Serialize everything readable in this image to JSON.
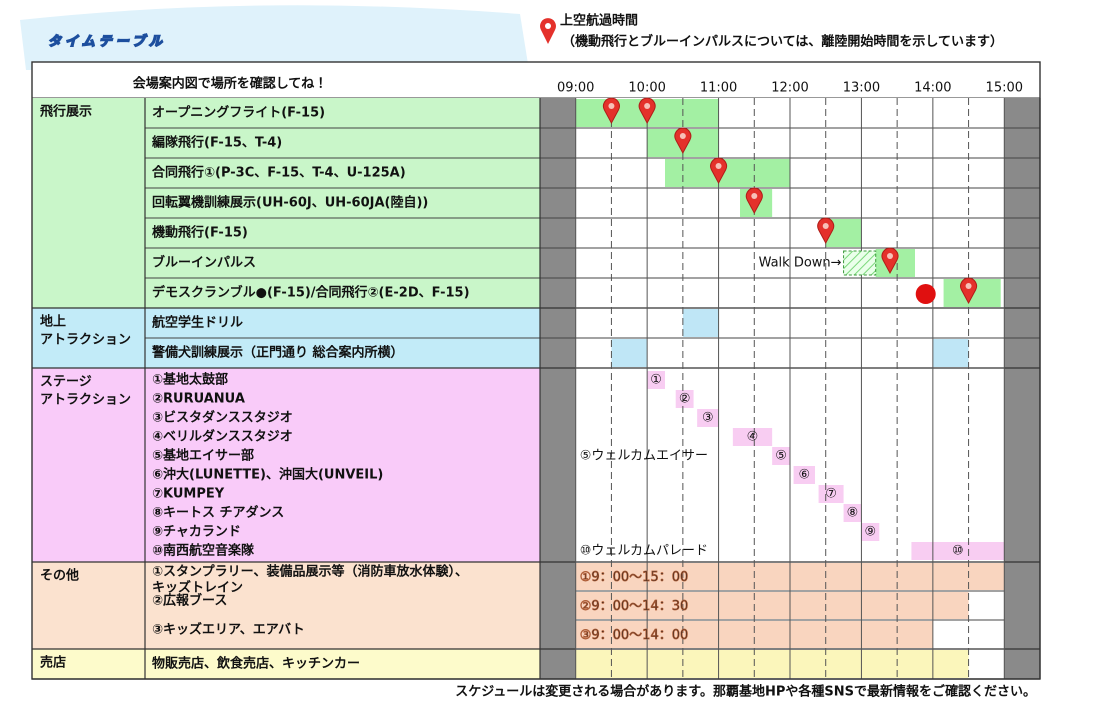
{
  "header": {
    "title": "タイムテーブル",
    "pin_legend": "上空航過時間",
    "pin_note": "（機動飛行とブルーインパルスについては、離陸開始時間を示しています）",
    "map_note": "会場案内図で場所を確認してね！"
  },
  "timeline": {
    "xlim": [
      8.5,
      15.5
    ],
    "ticks": [
      {
        "value": 9,
        "label": "09:00"
      },
      {
        "value": 10,
        "label": "10:00"
      },
      {
        "value": 11,
        "label": "11:00"
      },
      {
        "value": 12,
        "label": "12:00"
      },
      {
        "value": 13,
        "label": "13:00"
      },
      {
        "value": 14,
        "label": "14:00"
      },
      {
        "value": 15,
        "label": "15:00"
      }
    ]
  },
  "sections": [
    {
      "name": [
        "飛行展示"
      ],
      "color": "#c9f6c9",
      "bar_color": "#a3f0a3",
      "rows": [
        {
          "label": "オープニングフライト(F-15)",
          "bars": [
            [
              9,
              11
            ]
          ],
          "pins": [
            9.5,
            10
          ]
        },
        {
          "label": "編隊飛行(F-15、T-4)",
          "bars": [
            [
              10,
              11
            ]
          ],
          "pins": [
            10.5
          ]
        },
        {
          "label": "合同飛行①(P-3C、F-15、T-4、U-125A)",
          "bars": [
            [
              10.25,
              12
            ]
          ],
          "pins": [
            11
          ]
        },
        {
          "label": "回転翼機訓練展示(UH-60J、UH-60JA(陸自))",
          "bars": [
            [
              11.3,
              11.75
            ]
          ],
          "pins": [
            11.5
          ]
        },
        {
          "label": "機動飛行(F-15)",
          "bars": [
            [
              12.5,
              13
            ]
          ],
          "pins": [
            12.5
          ]
        },
        {
          "label": "ブルーインパルス",
          "bars": [
            [
              13.2,
              13.75
            ]
          ],
          "hatched": [
            [
              12.75,
              13.2
            ]
          ],
          "annotation": "Walk Down→",
          "pins": [
            13.4
          ]
        },
        {
          "label": "デモスクランブル●(F-15)/合同飛行②(E-2D、F-15)",
          "bars": [
            [
              14.15,
              14.95
            ]
          ],
          "dots": [
            13.9
          ],
          "pins": [
            14.5
          ]
        }
      ]
    },
    {
      "name": [
        "地上",
        "アトラクション"
      ],
      "color": "#c2ebf8",
      "bar_color": "#bfe6f6",
      "rows": [
        {
          "label": "航空学生ドリル",
          "bars": [
            [
              10.5,
              11
            ]
          ]
        },
        {
          "label": "警備犬訓練展示（正門通り 総合案内所横）",
          "bars": [
            [
              9.5,
              10
            ],
            [
              14,
              14.5
            ]
          ]
        }
      ]
    },
    {
      "name": [
        "ステージ",
        "アトラクション"
      ],
      "color": "#f9cbf9",
      "bar_color": "#f8cdf2",
      "items": [
        {
          "label": "①基地太鼓部",
          "marker": "①",
          "span": [
            10,
            10.25
          ]
        },
        {
          "label": "②RURUANUA",
          "marker": "②",
          "span": [
            10.4,
            10.65
          ]
        },
        {
          "label": "③ビスタダンススタジオ",
          "marker": "③",
          "span": [
            10.7,
            11
          ]
        },
        {
          "label": "④ベリルダンススタジオ",
          "marker": "④",
          "span": [
            11.2,
            11.75
          ]
        },
        {
          "label": "⑤基地エイサー部",
          "marker": "⑤",
          "span": [
            11.75,
            12
          ],
          "note": "⑤ウェルカムエイサー"
        },
        {
          "label": "⑥沖大(LUNETTE)、沖国大(UNVEIL)",
          "marker": "⑥",
          "span": [
            12.05,
            12.35
          ]
        },
        {
          "label": "⑦KUMPEY",
          "marker": "⑦",
          "span": [
            12.4,
            12.75
          ]
        },
        {
          "label": "⑧キートス チアダンス",
          "marker": "⑧",
          "span": [
            12.75,
            13
          ]
        },
        {
          "label": "⑨チャカランド",
          "marker": "⑨",
          "span": [
            13,
            13.25
          ]
        },
        {
          "label": "⑩南西航空音楽隊",
          "marker": "⑩",
          "span": [
            13.7,
            15
          ],
          "note": "⑩ウェルカムパレード"
        }
      ]
    },
    {
      "name": [
        "その他"
      ],
      "color": "#fbe2cf",
      "bar_color": "#f9d5bf",
      "rows": [
        {
          "label": [
            "①スタンプラリー、装備品展示等（消防車放水体験）、",
            "キッズトレイン"
          ],
          "bars": [
            [
              9,
              15
            ]
          ],
          "bar_label": "①9：00～15：00"
        },
        {
          "label": [
            "②広報ブース"
          ],
          "bars": [
            [
              9,
              14.5
            ]
          ],
          "bar_label": "②9：00～14：30"
        },
        {
          "label": [
            "③キッズエリア、エアバト"
          ],
          "bars": [
            [
              9,
              14
            ]
          ],
          "bar_label": "③9：00～14：00"
        }
      ]
    },
    {
      "name": [
        "売店"
      ],
      "color": "#fdfbcb",
      "bar_color": "#fbf6bb",
      "rows": [
        {
          "label": "物販売店、飲食売店、キッチンカー",
          "bars": [
            [
              9,
              14.5
            ]
          ]
        }
      ]
    }
  ],
  "footer": "スケジュールは変更される場合があります。那覇基地HPや各種SNSで最新情報をご確認ください。"
}
